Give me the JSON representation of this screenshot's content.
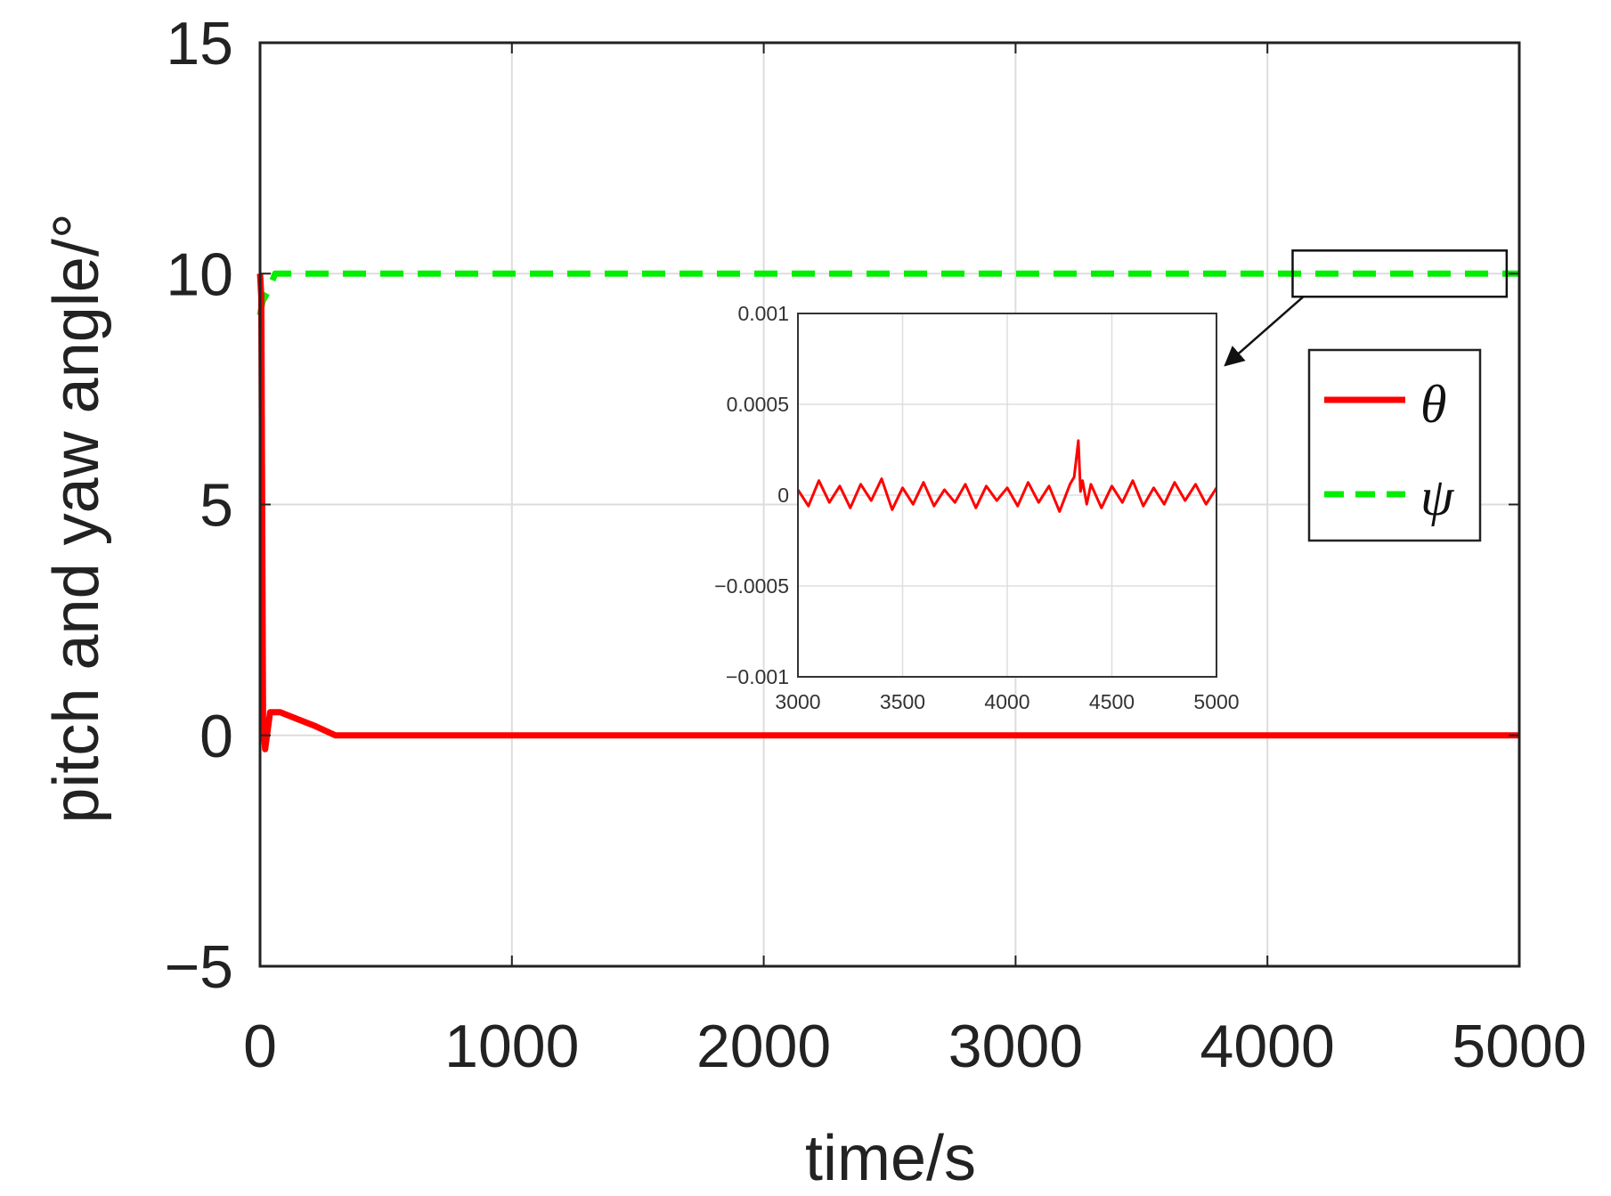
{
  "chart_data": [
    {
      "type": "line",
      "title": "",
      "xlabel": "time/s",
      "ylabel": "pitch and yaw angle/°",
      "xlim": [
        0,
        5000
      ],
      "ylim": [
        -5,
        15
      ],
      "x_ticks": [
        0,
        1000,
        2000,
        3000,
        4000,
        5000
      ],
      "y_ticks": [
        -5,
        0,
        5,
        10,
        15
      ],
      "x_tick_labels": [
        "0",
        "1000",
        "2000",
        "3000",
        "4000",
        "5000"
      ],
      "y_tick_labels": [
        "−5",
        "0",
        "5",
        "10",
        "15"
      ],
      "grid": true,
      "legend_position": "right",
      "series": [
        {
          "name": "θ",
          "color": "#ff0000",
          "style": "solid",
          "x": [
            0,
            5,
            12,
            20,
            40,
            80,
            150,
            220,
            300,
            350,
            1000,
            2000,
            3000,
            4000,
            5000
          ],
          "y": [
            10,
            9.5,
            0.3,
            -0.3,
            0.5,
            0.5,
            0.35,
            0.2,
            0.0,
            0.0,
            0.0,
            0.0,
            0.0,
            0.0,
            0.0
          ]
        },
        {
          "name": "ψ",
          "color": "#00ee00",
          "style": "dashed",
          "x": [
            0,
            10,
            30,
            60,
            100,
            1000,
            2000,
            3000,
            4000,
            5000
          ],
          "y": [
            9.1,
            9.4,
            9.6,
            10,
            10,
            10,
            10,
            10,
            10,
            10
          ]
        }
      ],
      "zoom_region": {
        "x": [
          4100,
          4950
        ],
        "y": [
          9.5,
          10.5
        ]
      }
    },
    {
      "type": "line",
      "title": "",
      "xlim": [
        3000,
        5000
      ],
      "ylim": [
        -0.001,
        0.001
      ],
      "x_ticks": [
        3000,
        3500,
        4000,
        4500,
        5000
      ],
      "y_ticks": [
        -0.001,
        -0.0005,
        0,
        0.0005,
        0.001
      ],
      "x_tick_labels": [
        "3000",
        "3500",
        "4000",
        "4500",
        "5000"
      ],
      "y_tick_labels": [
        "−0.001",
        "−0.0005",
        "0",
        "0.0005",
        "0.001"
      ],
      "grid": true,
      "series": [
        {
          "color": "#ff0000",
          "style": "solid",
          "x": [
            3000,
            3050,
            3100,
            3150,
            3200,
            3250,
            3300,
            3350,
            3400,
            3450,
            3500,
            3550,
            3600,
            3650,
            3700,
            3750,
            3800,
            3850,
            3900,
            3950,
            4000,
            4050,
            4100,
            4150,
            4200,
            4250,
            4300,
            4320,
            4340,
            4350,
            4360,
            4380,
            4400,
            4450,
            4500,
            4550,
            4600,
            4650,
            4700,
            4750,
            4800,
            4850,
            4900,
            4950,
            5000
          ],
          "y": [
            3e-05,
            -6e-05,
            8e-05,
            -4e-05,
            5e-05,
            -7e-05,
            6e-05,
            -3e-05,
            9e-05,
            -8e-05,
            4e-05,
            -5e-05,
            7e-05,
            -6e-05,
            3e-05,
            -4e-05,
            6e-05,
            -7e-05,
            5e-05,
            -3e-05,
            4e-05,
            -6e-05,
            7e-05,
            -4e-05,
            5e-05,
            -9e-05,
            6e-05,
            0.0001,
            0.0003,
            2e-05,
            8e-05,
            -5e-05,
            6e-05,
            -7e-05,
            5e-05,
            -4e-05,
            8e-05,
            -6e-05,
            4e-05,
            -5e-05,
            7e-05,
            -3e-05,
            6e-05,
            -5e-05,
            4e-05
          ]
        }
      ]
    }
  ]
}
